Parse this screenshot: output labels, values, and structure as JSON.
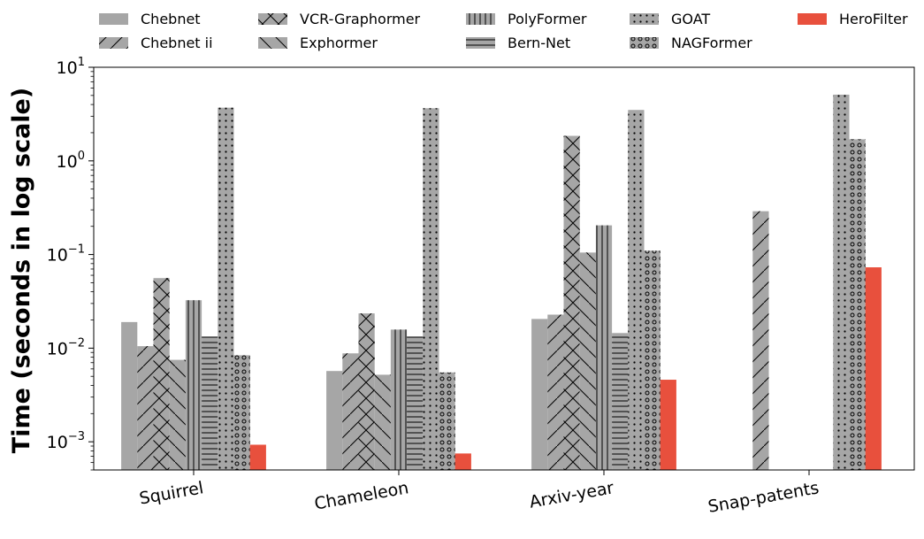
{
  "chart_data": {
    "type": "bar",
    "title": "",
    "xlabel": "",
    "ylabel": "Time (seconds in log scale)",
    "yscale": "log",
    "ylim": [
      0.0005,
      10
    ],
    "yticks": [
      {
        "value": 0.001,
        "base": "10",
        "exp": "−3"
      },
      {
        "value": 0.01,
        "base": "10",
        "exp": "−2"
      },
      {
        "value": 0.1,
        "base": "10",
        "exp": "−1"
      },
      {
        "value": 1,
        "base": "10",
        "exp": "0"
      },
      {
        "value": 10,
        "base": "10",
        "exp": "1"
      }
    ],
    "categories": [
      "Squirrel",
      "Chameleon",
      "Arxiv-year",
      "Snap-patents"
    ],
    "series": [
      {
        "name": "Chebnet",
        "pattern": "none",
        "color": "#a6a6a6",
        "values": [
          0.019,
          0.0057,
          0.0205,
          null
        ]
      },
      {
        "name": "Chebnet ii",
        "pattern": "diag",
        "color": "#a6a6a6",
        "values": [
          0.0105,
          0.0088,
          0.0228,
          0.29
        ]
      },
      {
        "name": "VCR-Graphormer",
        "pattern": "cross",
        "color": "#a6a6a6",
        "values": [
          0.056,
          0.0235,
          1.85,
          null
        ]
      },
      {
        "name": "Exphormer",
        "pattern": "backdiag",
        "color": "#a6a6a6",
        "values": [
          0.0075,
          0.0052,
          0.105,
          null
        ]
      },
      {
        "name": "PolyFormer",
        "pattern": "vert",
        "color": "#a6a6a6",
        "values": [
          0.0325,
          0.0158,
          0.205,
          null
        ]
      },
      {
        "name": "Bern-Net",
        "pattern": "horiz",
        "color": "#a6a6a6",
        "values": [
          0.0133,
          0.0133,
          0.0145,
          null
        ]
      },
      {
        "name": "GOAT",
        "pattern": "dots",
        "color": "#a6a6a6",
        "values": [
          3.7,
          3.65,
          3.5,
          5.1
        ]
      },
      {
        "name": "NAGFormer",
        "pattern": "rings",
        "color": "#a6a6a6",
        "values": [
          0.0084,
          0.0055,
          0.11,
          1.7
        ]
      },
      {
        "name": "HeroFilter",
        "pattern": "none",
        "color": "#e8503d",
        "values": [
          0.00093,
          0.00075,
          0.0046,
          0.073
        ]
      }
    ],
    "legend_position": "top",
    "grid": false
  }
}
